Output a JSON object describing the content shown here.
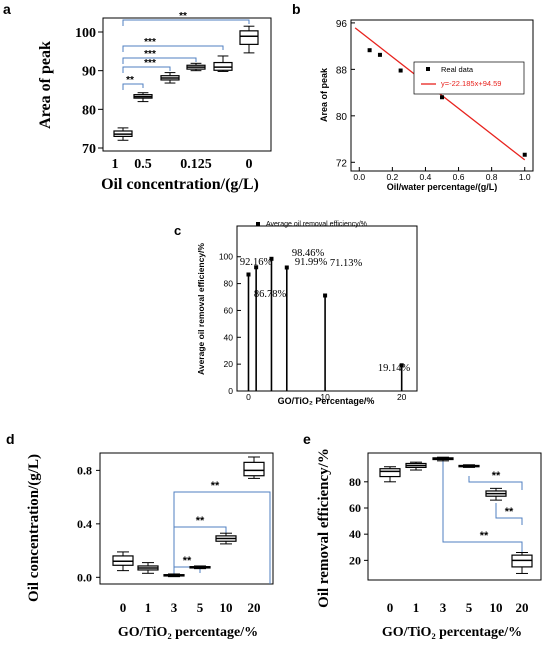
{
  "chart_data": [
    {
      "panel": "a",
      "type": "box",
      "xlabel": "Oil concentration/(g/L)",
      "ylabel": "Area of peak",
      "ylim": [
        70,
        100
      ],
      "yticks": [
        "70",
        "80",
        "90",
        "100"
      ],
      "categories": [
        "1",
        "0.5",
        "0.125",
        "0"
      ],
      "boxes": [
        {
          "category": "1",
          "whisker_low": 72.0,
          "q1": 73.0,
          "median": 73.6,
          "q3": 74.4,
          "whisker_high": 75.2
        },
        {
          "category": "0.5",
          "whisker_low": 82.0,
          "q1": 82.9,
          "median": 83.3,
          "q3": 83.8,
          "whisker_high": 84.3
        },
        {
          "category": "0.5b",
          "whisker_low": 86.8,
          "q1": 87.6,
          "median": 88.1,
          "q3": 88.7,
          "whisker_high": 89.5
        },
        {
          "category": "0.125",
          "whisker_low": 90.0,
          "q1": 90.4,
          "median": 90.9,
          "q3": 91.4,
          "whisker_high": 91.9
        },
        {
          "category": "0.125b",
          "whisker_low": 89.8,
          "q1": 90.1,
          "median": 90.9,
          "q3": 92.1,
          "whisker_high": 93.8
        },
        {
          "category": "0",
          "whisker_low": 94.6,
          "q1": 96.8,
          "median": 98.9,
          "q3": 100.3,
          "whisker_high": 101.5
        }
      ],
      "significance": [
        {
          "label": "**",
          "from": "1",
          "to": "0.5"
        },
        {
          "label": "***",
          "from": "1",
          "to": "0.5b"
        },
        {
          "label": "***",
          "from": "1",
          "to": "0.125"
        },
        {
          "label": "***",
          "from": "1",
          "to": "0.125b"
        },
        {
          "label": "**",
          "from": "1",
          "to": "0"
        }
      ]
    },
    {
      "panel": "b",
      "type": "scatter",
      "xlabel": "Oil/water percentage/(g/L)",
      "ylabel": "Area of peak",
      "xlim": [
        -0.05,
        1.05
      ],
      "ylim": [
        70.5,
        96.5
      ],
      "xticks": [
        "0.0",
        "0.2",
        "0.4",
        "0.6",
        "0.8",
        "1.0"
      ],
      "yticks": [
        "72",
        "80",
        "88",
        "96"
      ],
      "series": [
        {
          "name": "Real data",
          "x": [
            0.0625,
            0.125,
            0.25,
            0.5,
            1.0
          ],
          "y": [
            91.3,
            90.5,
            87.8,
            83.2,
            73.3
          ]
        },
        {
          "name": "y=-22.185x+94.59",
          "x": [
            -0.025,
            1.0
          ],
          "y": [
            95.14,
            72.41
          ]
        }
      ],
      "legend": "top-right"
    },
    {
      "panel": "c",
      "type": "stem",
      "xlabel": "GO/TiO₂ Percentage/%",
      "ylabel": "Average oil removal efficiency/%",
      "xlim": [
        -1.5,
        22
      ],
      "ylim": [
        0,
        108
      ],
      "xticks": [
        "0",
        "10",
        "20"
      ],
      "yticks": [
        "0",
        "20",
        "40",
        "60",
        "80",
        "100"
      ],
      "legend_label": "Average oil removal efficiency/%",
      "x": [
        0,
        1,
        3,
        5,
        10,
        20
      ],
      "y": [
        86.78,
        92.16,
        98.46,
        91.99,
        71.13,
        19.14
      ],
      "labels": [
        "86.78%",
        "92.16%",
        "98.46%",
        "91.99%",
        "71.13%",
        "19.14%"
      ]
    },
    {
      "panel": "d",
      "type": "box",
      "xlabel": "GO/TiO₂ percentage/%",
      "ylabel": "Oil concentration/(g/L)",
      "ylim": [
        -0.05,
        0.93
      ],
      "yticks": [
        "0.0",
        "0.4",
        "0.8"
      ],
      "categories": [
        "0",
        "1",
        "3",
        "5",
        "10",
        "20"
      ],
      "boxes": [
        {
          "category": "0",
          "whisker_low": 0.05,
          "q1": 0.09,
          "median": 0.12,
          "q3": 0.16,
          "whisker_high": 0.19
        },
        {
          "category": "1",
          "whisker_low": 0.03,
          "q1": 0.055,
          "median": 0.07,
          "q3": 0.085,
          "whisker_high": 0.11
        },
        {
          "category": "3",
          "whisker_low": 0.005,
          "q1": 0.01,
          "median": 0.015,
          "q3": 0.02,
          "whisker_high": 0.025
        },
        {
          "category": "5",
          "whisker_low": 0.065,
          "q1": 0.07,
          "median": 0.075,
          "q3": 0.08,
          "whisker_high": 0.085
        },
        {
          "category": "10",
          "whisker_low": 0.25,
          "q1": 0.27,
          "median": 0.29,
          "q3": 0.31,
          "whisker_high": 0.33
        },
        {
          "category": "20",
          "whisker_low": 0.74,
          "q1": 0.76,
          "median": 0.8,
          "q3": 0.86,
          "whisker_high": 0.9
        }
      ],
      "significance": [
        {
          "label": "**",
          "from": "3",
          "to": "5"
        },
        {
          "label": "**",
          "from": "3",
          "to": "10"
        },
        {
          "label": "**",
          "from": "3",
          "to": "20"
        }
      ]
    },
    {
      "panel": "e",
      "type": "box",
      "xlabel": "GO/TiO₂ percentage/%",
      "ylabel": "Oil removal efficiency/%",
      "ylim": [
        5,
        102
      ],
      "yticks": [
        "20",
        "40",
        "60",
        "80"
      ],
      "categories": [
        "0",
        "1",
        "3",
        "5",
        "10",
        "20"
      ],
      "boxes": [
        {
          "category": "0",
          "whisker_low": 80.0,
          "q1": 84.0,
          "median": 88.0,
          "q3": 90.0,
          "whisker_high": 91.5
        },
        {
          "category": "1",
          "whisker_low": 89.0,
          "q1": 91.0,
          "median": 92.5,
          "q3": 94.0,
          "whisker_high": 95.0
        },
        {
          "category": "3",
          "whisker_low": 96.0,
          "q1": 97.0,
          "median": 97.8,
          "q3": 98.3,
          "whisker_high": 98.8
        },
        {
          "category": "5",
          "whisker_low": 91.0,
          "q1": 91.5,
          "median": 92.0,
          "q3": 92.5,
          "whisker_high": 93.0
        },
        {
          "category": "10",
          "whisker_low": 66.0,
          "q1": 69.0,
          "median": 71.0,
          "q3": 73.0,
          "whisker_high": 75.0
        },
        {
          "category": "20",
          "whisker_low": 10.0,
          "q1": 15.0,
          "median": 20.0,
          "q3": 24.0,
          "whisker_high": 26.0
        }
      ],
      "significance": [
        {
          "label": "**",
          "from": "5",
          "to": "10"
        },
        {
          "label": "**",
          "from": "3",
          "to": "20"
        },
        {
          "label": "**",
          "from": "10",
          "to": "20"
        }
      ]
    }
  ],
  "colors": {
    "fit_line": "#e8231e",
    "bracket": "#4f7fc0",
    "ink": "#000000"
  }
}
